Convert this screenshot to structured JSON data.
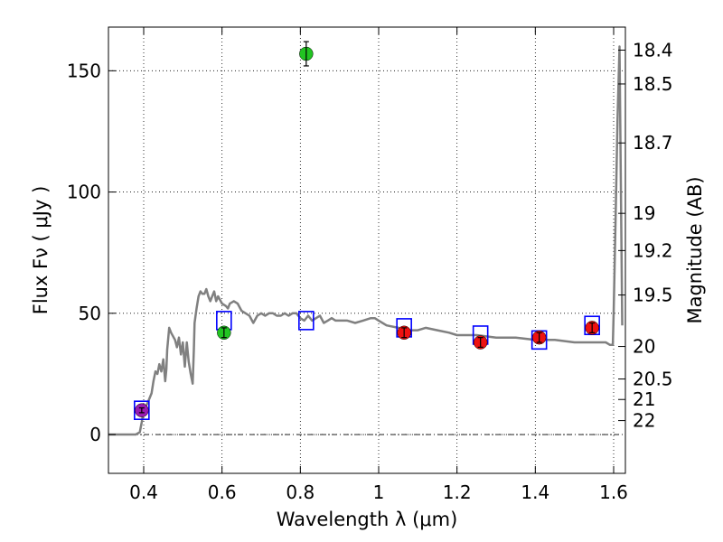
{
  "chart_data": {
    "type": "scatter",
    "xlabel": "Wavelength  λ (μm)",
    "ylabel": "Flux  Fν  ( μJy )",
    "ylabel_right": "Magnitude (AB)",
    "xlim": [
      0.31,
      1.63
    ],
    "ylim": [
      -16,
      168
    ],
    "grid": true,
    "x_ticks": [
      {
        "value": 0.4,
        "label": "0.4"
      },
      {
        "value": 0.6,
        "label": "0.6"
      },
      {
        "value": 0.8,
        "label": "0.8"
      },
      {
        "value": 1.0,
        "label": "1"
      },
      {
        "value": 1.2,
        "label": "1.2"
      },
      {
        "value": 1.4,
        "label": "1.4"
      },
      {
        "value": 1.6,
        "label": "1.6"
      }
    ],
    "y_ticks": [
      {
        "value": 0,
        "label": "0"
      },
      {
        "value": 50,
        "label": "50"
      },
      {
        "value": 100,
        "label": "100"
      },
      {
        "value": 150,
        "label": "150"
      }
    ],
    "mag_ticks": [
      {
        "mag": 18.4,
        "label": "18.4"
      },
      {
        "mag": 18.5,
        "label": "18.5"
      },
      {
        "mag": 18.7,
        "label": "18.7"
      },
      {
        "mag": 19,
        "label": "19"
      },
      {
        "mag": 19.2,
        "label": "19.2"
      },
      {
        "mag": 19.5,
        "label": "19.5"
      },
      {
        "mag": 20,
        "label": "20"
      },
      {
        "mag": 20.5,
        "label": "20.5"
      },
      {
        "mag": 21,
        "label": "21"
      },
      {
        "mag": 22,
        "label": "22"
      }
    ],
    "zero_line": 0,
    "template": [
      [
        0.31,
        0
      ],
      [
        0.38,
        0
      ],
      [
        0.39,
        1
      ],
      [
        0.395,
        5
      ],
      [
        0.4,
        10
      ],
      [
        0.41,
        13
      ],
      [
        0.42,
        17
      ],
      [
        0.425,
        22
      ],
      [
        0.43,
        26
      ],
      [
        0.435,
        25
      ],
      [
        0.44,
        29
      ],
      [
        0.445,
        26
      ],
      [
        0.45,
        31
      ],
      [
        0.455,
        22
      ],
      [
        0.458,
        27
      ],
      [
        0.46,
        35
      ],
      [
        0.465,
        44
      ],
      [
        0.47,
        42
      ],
      [
        0.48,
        39
      ],
      [
        0.485,
        36
      ],
      [
        0.49,
        40
      ],
      [
        0.495,
        33
      ],
      [
        0.5,
        38
      ],
      [
        0.505,
        28
      ],
      [
        0.51,
        38
      ],
      [
        0.515,
        30
      ],
      [
        0.52,
        25
      ],
      [
        0.525,
        21
      ],
      [
        0.528,
        35
      ],
      [
        0.53,
        46
      ],
      [
        0.535,
        52
      ],
      [
        0.54,
        57
      ],
      [
        0.545,
        59
      ],
      [
        0.55,
        58
      ],
      [
        0.555,
        58
      ],
      [
        0.56,
        60
      ],
      [
        0.565,
        57
      ],
      [
        0.57,
        55
      ],
      [
        0.575,
        57
      ],
      [
        0.58,
        59
      ],
      [
        0.585,
        55
      ],
      [
        0.59,
        57
      ],
      [
        0.6,
        54
      ],
      [
        0.61,
        53
      ],
      [
        0.615,
        52
      ],
      [
        0.62,
        54
      ],
      [
        0.63,
        55
      ],
      [
        0.64,
        54
      ],
      [
        0.65,
        51
      ],
      [
        0.66,
        50
      ],
      [
        0.67,
        49
      ],
      [
        0.68,
        46
      ],
      [
        0.69,
        49
      ],
      [
        0.7,
        50
      ],
      [
        0.71,
        49
      ],
      [
        0.72,
        50
      ],
      [
        0.73,
        50
      ],
      [
        0.74,
        49
      ],
      [
        0.75,
        49
      ],
      [
        0.76,
        50
      ],
      [
        0.77,
        49
      ],
      [
        0.78,
        50
      ],
      [
        0.79,
        50
      ],
      [
        0.8,
        48
      ],
      [
        0.81,
        47
      ],
      [
        0.82,
        49
      ],
      [
        0.83,
        47
      ],
      [
        0.84,
        48
      ],
      [
        0.85,
        49
      ],
      [
        0.86,
        46
      ],
      [
        0.87,
        47
      ],
      [
        0.88,
        48
      ],
      [
        0.89,
        47
      ],
      [
        0.9,
        47
      ],
      [
        0.92,
        47
      ],
      [
        0.94,
        46
      ],
      [
        0.96,
        47
      ],
      [
        0.98,
        48
      ],
      [
        0.99,
        48
      ],
      [
        1.0,
        47
      ],
      [
        1.02,
        45
      ],
      [
        1.05,
        44
      ],
      [
        1.08,
        43
      ],
      [
        1.1,
        43
      ],
      [
        1.12,
        44
      ],
      [
        1.15,
        43
      ],
      [
        1.18,
        42
      ],
      [
        1.2,
        41
      ],
      [
        1.25,
        41
      ],
      [
        1.3,
        40
      ],
      [
        1.35,
        40
      ],
      [
        1.4,
        39
      ],
      [
        1.45,
        39
      ],
      [
        1.5,
        38
      ],
      [
        1.55,
        38
      ],
      [
        1.58,
        38
      ],
      [
        1.59,
        37
      ],
      [
        1.598,
        37
      ],
      [
        1.6,
        50
      ],
      [
        1.605,
        90
      ],
      [
        1.61,
        130
      ],
      [
        1.615,
        160
      ],
      [
        1.622,
        45
      ]
    ],
    "points": [
      {
        "x": 0.395,
        "y": 10,
        "color": "#9a1ab3",
        "err": 1
      },
      {
        "x": 0.605,
        "y": 42,
        "color": "#22c422",
        "err": 2
      },
      {
        "x": 0.815,
        "y": 157,
        "color": "#22c422",
        "err": 5
      },
      {
        "x": 1.065,
        "y": 42,
        "color": "#ee1111",
        "err": 2
      },
      {
        "x": 1.26,
        "y": 38,
        "color": "#ee1111",
        "err": 2
      },
      {
        "x": 1.41,
        "y": 40,
        "color": "#ee1111",
        "err": 2
      },
      {
        "x": 1.545,
        "y": 44,
        "color": "#ee1111",
        "err": 2
      }
    ],
    "model_boxes": [
      {
        "x": 0.395,
        "y": 10
      },
      {
        "x": 0.605,
        "y": 47
      },
      {
        "x": 0.815,
        "y": 47
      },
      {
        "x": 1.065,
        "y": 44
      },
      {
        "x": 1.26,
        "y": 41
      },
      {
        "x": 1.41,
        "y": 39
      },
      {
        "x": 1.545,
        "y": 45
      }
    ],
    "colors": {
      "template": "#808080",
      "box": "#0000ff",
      "errorbar": "#000000"
    }
  }
}
